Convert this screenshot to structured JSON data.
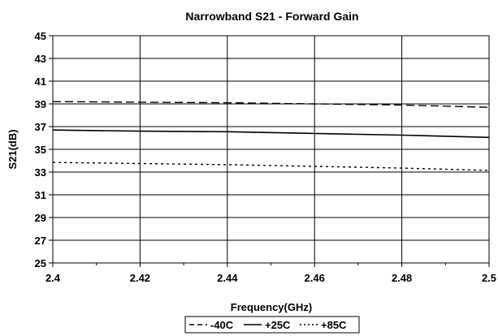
{
  "chart_data": {
    "type": "line",
    "title": "Narrowband S21 - Forward Gain",
    "xlabel": "Frequency(GHz)",
    "ylabel": "S21(dB)",
    "xlim": [
      2.4,
      2.5
    ],
    "ylim": [
      25,
      45
    ],
    "x_ticks": [
      "2.4",
      "2.42",
      "2.44",
      "2.46",
      "2.48",
      "2.5"
    ],
    "y_ticks": [
      "25",
      "27",
      "29",
      "31",
      "33",
      "35",
      "37",
      "39",
      "41",
      "43",
      "45"
    ],
    "grid": true,
    "legend_position": "bottom",
    "x": [
      2.4,
      2.42,
      2.44,
      2.46,
      2.48,
      2.5
    ],
    "series": [
      {
        "name": "-40C",
        "style": "dashed",
        "color": "#000000",
        "values": [
          39.2,
          39.15,
          39.1,
          39.0,
          38.9,
          38.7
        ]
      },
      {
        "name": "+25C",
        "style": "solid",
        "color": "#000000",
        "values": [
          36.7,
          36.6,
          36.55,
          36.4,
          36.25,
          36.05
        ]
      },
      {
        "name": "+85C",
        "style": "dotted",
        "color": "#000000",
        "values": [
          33.85,
          33.75,
          33.65,
          33.5,
          33.35,
          33.15
        ]
      }
    ]
  }
}
